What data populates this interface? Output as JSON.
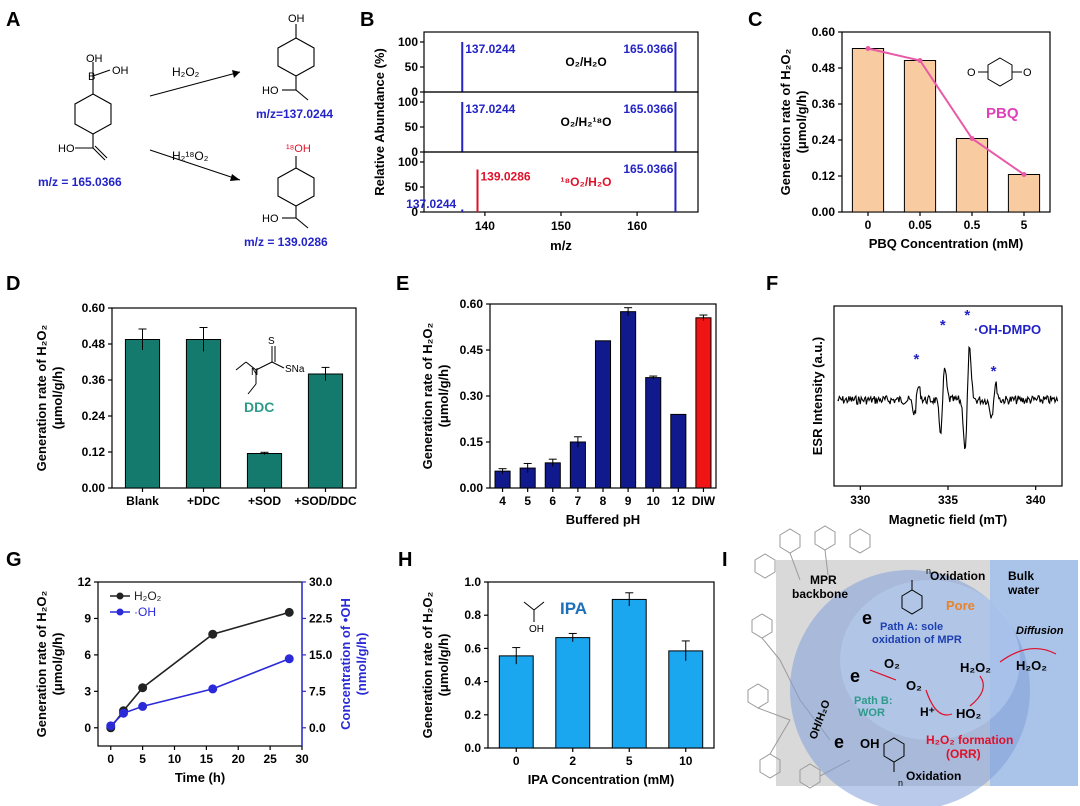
{
  "panels": {
    "A": {
      "letter": "A",
      "start_mz": "m/z = 165.0366",
      "reagent1": "H₂O₂",
      "reagent2": "H₂¹⁸O₂",
      "product1_mz": "m/z=137.0244",
      "product2_mz": "m/z = 139.0286",
      "atoms": {
        "oh": "OH",
        "b": "B",
        "hooc": "HO",
        "o18h": "¹⁸OH"
      }
    },
    "B": {
      "letter": "B"
    },
    "C": {
      "letter": "C",
      "inset_label": "PBQ"
    },
    "D": {
      "letter": "D",
      "inset_label": "DDC",
      "inset_atoms": {
        "s": "S",
        "sna": "SNa",
        "n": "N"
      }
    },
    "E": {
      "letter": "E"
    },
    "F": {
      "letter": "F"
    },
    "G": {
      "letter": "G"
    },
    "H": {
      "letter": "H",
      "inset_label": "IPA",
      "inset_atom": "OH"
    },
    "I": {
      "letter": "I",
      "labels": {
        "mpr": "MPR",
        "backbone": "backbone",
        "oxidation_top": "Oxidation",
        "bulk": "Bulk",
        "water": "water",
        "pore": "Pore",
        "path_a1": "Path A: sole",
        "path_a2": "oxidation of MPR",
        "path_b1": "Path B:",
        "path_b2": "WOR",
        "oh_h2o": "OH/H₂O",
        "o2": "O₂",
        "o2_rad": "O₂",
        "h2o2_1": "H₂O₂",
        "h_plus": "H⁺",
        "ho2": "HO₂",
        "diffusion": "Diffusion",
        "h2o2_2": "H₂O₂",
        "formation1": "H₂O₂ formation",
        "formation2": "(ORR)",
        "e_sym": "e",
        "oh_rad": "OH",
        "oxidation_bottom": "Oxidation",
        "n_sub": "n"
      },
      "colors": {
        "backbone_bg": "#d9d9d9",
        "water_bg": "#a9c4e8",
        "pore": "#7f9fd9",
        "formation": "#e0102a",
        "path_a": "#1c3fb0",
        "path_b": "#2e9b8a"
      }
    }
  },
  "chart_data": [
    {
      "id": "B",
      "type": "bar",
      "xlabel": "m/z",
      "ylabel": "Relative Abundance (%)",
      "xlim": [
        132,
        168
      ],
      "xticks": [
        140,
        150,
        160
      ],
      "ylim": [
        0,
        120
      ],
      "yticks": [
        0,
        50,
        100
      ],
      "subplots": [
        {
          "label": "O₂/H₂O",
          "peaks": [
            {
              "x": 137.0244,
              "y": 100,
              "label": "137.0244",
              "color": "#2323c8"
            },
            {
              "x": 165.0366,
              "y": 100,
              "label": "165.0366",
              "color": "#2323c8"
            }
          ]
        },
        {
          "label": "O₂/H₂¹⁸O",
          "peaks": [
            {
              "x": 137.0244,
              "y": 100,
              "label": "137.0244",
              "color": "#2323c8"
            },
            {
              "x": 165.0366,
              "y": 100,
              "label": "165.0366",
              "color": "#2323c8"
            }
          ]
        },
        {
          "label": "¹⁸O₂/H₂O",
          "label_color": "#e0102a",
          "peaks": [
            {
              "x": 137.0244,
              "y": 5,
              "label": "137.0244",
              "color": "#2323c8"
            },
            {
              "x": 139.0286,
              "y": 85,
              "label": "139.0286",
              "color": "#e0102a"
            },
            {
              "x": 165.0366,
              "y": 100,
              "label": "165.0366",
              "color": "#2323c8"
            }
          ]
        }
      ]
    },
    {
      "id": "C",
      "type": "bar",
      "categories": [
        "0",
        "0.05",
        "0.5",
        "5"
      ],
      "values": [
        0.545,
        0.505,
        0.245,
        0.125
      ],
      "line_values": [
        0.545,
        0.505,
        0.245,
        0.125
      ],
      "xlabel": "PBQ Concentration (mM)",
      "ylabel": "Generation rate of H₂O₂ (μmol/g/h)",
      "ylim": [
        0,
        0.6
      ],
      "yticks": [
        "0.00",
        "0.12",
        "0.24",
        "0.36",
        "0.48",
        "0.60"
      ],
      "bar_color": "#f8cba0",
      "line_color": "#e85aa8"
    },
    {
      "id": "D",
      "type": "bar",
      "categories": [
        "Blank",
        "+DDC",
        "+SOD",
        "+SOD/DDC"
      ],
      "values": [
        0.495,
        0.495,
        0.115,
        0.38
      ],
      "errors": [
        0.035,
        0.04,
        0.004,
        0.022
      ],
      "xlabel": "",
      "ylabel": "Generation rate of H₂O₂ (μmol/g/h)",
      "ylim": [
        0,
        0.6
      ],
      "yticks": [
        "0.00",
        "0.12",
        "0.24",
        "0.36",
        "0.48",
        "0.60"
      ],
      "bar_color": "#157a6e"
    },
    {
      "id": "E",
      "type": "bar",
      "categories": [
        "4",
        "5",
        "6",
        "7",
        "8",
        "9",
        "10",
        "12",
        "DIW"
      ],
      "values": [
        0.055,
        0.065,
        0.082,
        0.15,
        0.48,
        0.575,
        0.36,
        0.24,
        0.555
      ],
      "errors": [
        0.008,
        0.015,
        0.012,
        0.017,
        0.0,
        0.013,
        0.005,
        0.0,
        0.009
      ],
      "colors": [
        "#101a8c",
        "#101a8c",
        "#101a8c",
        "#101a8c",
        "#101a8c",
        "#101a8c",
        "#101a8c",
        "#101a8c",
        "#f01414"
      ],
      "xlabel": "Buffered pH",
      "ylabel": "Generation rate of H₂O₂ (μmol/g/h)",
      "ylim": [
        0,
        0.6
      ],
      "yticks": [
        "0.00",
        "0.15",
        "0.30",
        "0.45",
        "0.60"
      ]
    },
    {
      "id": "F",
      "type": "line",
      "xlabel": "Magnetic field (mT)",
      "ylabel": "ESR Intensity (a.u.)",
      "xlim": [
        328.5,
        341.5
      ],
      "xticks": [
        330,
        335,
        340
      ],
      "legend": "·OH-DMPO",
      "marker": "*",
      "marker_color": "#2323c8",
      "peak_positions": [
        333.2,
        334.7,
        336.1,
        337.6
      ]
    },
    {
      "id": "G",
      "type": "line",
      "xlabel": "Time (h)",
      "ylabel": "Generation rate of H₂O₂ (μmol/g/h)",
      "y2label": "Concentration of •OH (nmol/g/h)",
      "xlim": [
        -2,
        30
      ],
      "xticks": [
        0,
        5,
        10,
        15,
        20,
        25,
        30
      ],
      "ylim": [
        -1.5,
        12
      ],
      "yticks": [
        0,
        3,
        6,
        9,
        12
      ],
      "y2lim": [
        -3.75,
        30
      ],
      "y2ticks": [
        "0.0",
        "7.5",
        "15.0",
        "22.5",
        "30.0"
      ],
      "series": [
        {
          "name": "H₂O₂",
          "axis": "left",
          "color": "#222222",
          "x": [
            0,
            2,
            5,
            16,
            28
          ],
          "y": [
            0,
            1.4,
            3.3,
            7.7,
            9.5
          ]
        },
        {
          "name": "·OH",
          "axis": "right",
          "color": "#2a2ad8",
          "x": [
            0,
            2,
            5,
            16,
            28
          ],
          "y": [
            0.4,
            3.0,
            4.4,
            8.0,
            14.2
          ]
        }
      ]
    },
    {
      "id": "H",
      "type": "bar",
      "categories": [
        "0",
        "2",
        "5",
        "10"
      ],
      "values": [
        0.555,
        0.665,
        0.895,
        0.585
      ],
      "errors": [
        0.05,
        0.025,
        0.04,
        0.06
      ],
      "xlabel": "IPA Concentration (mM)",
      "ylabel": "Generation rate of H₂O₂ (μmol/g/h)",
      "ylim": [
        0,
        1.0
      ],
      "yticks": [
        "0.0",
        "0.2",
        "0.4",
        "0.6",
        "0.8",
        "1.0"
      ],
      "bar_color": "#1aa7ef"
    }
  ]
}
